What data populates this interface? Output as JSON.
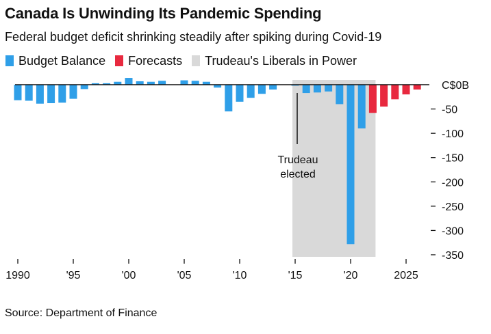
{
  "title": "Canada Is Unwinding Its Pandemic Spending",
  "subtitle": "Federal budget deficit shrinking steadily after spiking during Covid-19",
  "legend": [
    {
      "label": "Budget Balance",
      "color": "#2f9fe8"
    },
    {
      "label": "Forecasts",
      "color": "#e8293f"
    },
    {
      "label": "Trudeau's Liberals in Power",
      "color": "#d9d9d9"
    }
  ],
  "source": "Source: Department of Finance",
  "chart_data": {
    "type": "bar",
    "x": [
      1990,
      1991,
      1992,
      1993,
      1994,
      1995,
      1996,
      1997,
      1998,
      1999,
      2000,
      2001,
      2002,
      2003,
      2004,
      2005,
      2006,
      2007,
      2008,
      2009,
      2010,
      2011,
      2012,
      2013,
      2014,
      2015,
      2016,
      2017,
      2018,
      2019,
      2020,
      2021,
      2022,
      2023,
      2024,
      2025,
      2026
    ],
    "series": [
      {
        "name": "Budget Balance",
        "color": "#2f9fe8",
        "values": [
          -32,
          -33,
          -39,
          -38,
          -37,
          -29,
          -9,
          3,
          3,
          6,
          14,
          7,
          6,
          8,
          0,
          9,
          8,
          6,
          -6,
          -55,
          -35,
          -27,
          -19,
          -10,
          0,
          -2,
          -17,
          -16,
          -14,
          -40,
          -328,
          -90,
          null,
          null,
          null,
          null,
          null
        ]
      },
      {
        "name": "Forecasts",
        "color": "#e8293f",
        "values": [
          null,
          null,
          null,
          null,
          null,
          null,
          null,
          null,
          null,
          null,
          null,
          null,
          null,
          null,
          null,
          null,
          null,
          null,
          null,
          null,
          null,
          null,
          null,
          null,
          null,
          null,
          null,
          null,
          null,
          null,
          null,
          null,
          -58,
          -45,
          -30,
          -20,
          -10
        ]
      }
    ],
    "x_tick_labels": [
      "1990",
      "'95",
      "'00",
      "'05",
      "'10",
      "'15",
      "'20",
      "2025"
    ],
    "y_ticks": [
      0,
      -50,
      -100,
      -150,
      -200,
      -250,
      -300,
      -350
    ],
    "y_tick_labels": [
      "C$0B",
      "-50",
      "-100",
      "-150",
      "-200",
      "-250",
      "-300",
      "-350"
    ],
    "ylim": [
      -350,
      0
    ],
    "shaded_region": {
      "label": "Trudeau's Liberals in Power",
      "start": 2015,
      "end": 2022,
      "color": "#d9d9d9"
    },
    "annotations": [
      {
        "text_lines": [
          "Trudeau",
          "elected"
        ],
        "x": 2015
      }
    ],
    "grid": false,
    "legend_position": "top-left"
  }
}
